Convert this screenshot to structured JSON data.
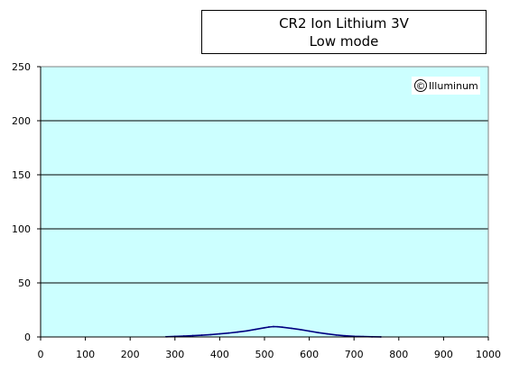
{
  "title": {
    "line1": "CR2 Ion Lithium 3V",
    "line2": "Low mode"
  },
  "watermark": {
    "symbol": "©",
    "text": "Illuminum"
  },
  "colors": {
    "plot_background": "#ccffff",
    "grid": "#000000",
    "series": "#000080"
  },
  "chart_data": {
    "type": "line",
    "title": "CR2 Ion Lithium 3V Low mode",
    "xlabel": "",
    "ylabel": "",
    "xlim": [
      0,
      1000
    ],
    "ylim": [
      0,
      250
    ],
    "x_ticks": [
      0,
      100,
      200,
      300,
      400,
      500,
      600,
      700,
      800,
      900,
      1000
    ],
    "y_ticks": [
      0,
      50,
      100,
      150,
      200,
      250
    ],
    "grid": "horizontal",
    "legend": "none",
    "series": [
      {
        "x": [
          280,
          300,
          320,
          340,
          360,
          380,
          400,
          420,
          440,
          460,
          480,
          500,
          510,
          520,
          530,
          540,
          560,
          580,
          600,
          620,
          640,
          660,
          680,
          700,
          720,
          740,
          760
        ],
        "y": [
          0.2,
          0.5,
          0.8,
          1.2,
          1.6,
          2.2,
          2.8,
          3.6,
          4.5,
          5.6,
          7.0,
          8.5,
          9.2,
          9.6,
          9.4,
          9.0,
          8.0,
          6.8,
          5.4,
          4.0,
          2.8,
          1.8,
          1.1,
          0.6,
          0.3,
          0.15,
          0.05
        ]
      }
    ]
  }
}
